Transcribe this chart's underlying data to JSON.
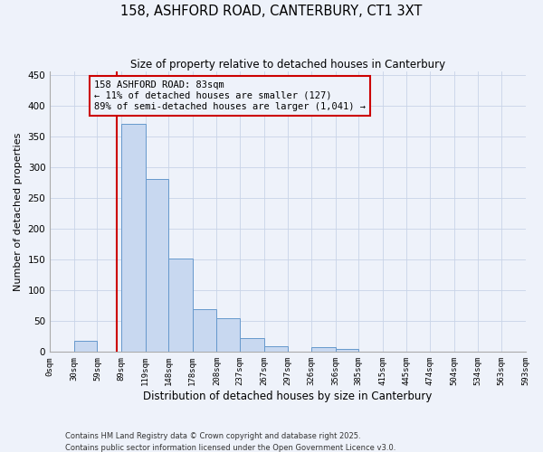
{
  "title": "158, ASHFORD ROAD, CANTERBURY, CT1 3XT",
  "subtitle": "Size of property relative to detached houses in Canterbury",
  "xlabel": "Distribution of detached houses by size in Canterbury",
  "ylabel": "Number of detached properties",
  "bar_color": "#c8d8f0",
  "bar_edge_color": "#6699cc",
  "grid_color": "#c8d4e8",
  "background_color": "#eef2fa",
  "annotation_box_color": "#cc0000",
  "property_line_color": "#cc0000",
  "bin_edges": [
    0,
    30,
    59,
    89,
    119,
    148,
    178,
    208,
    237,
    267,
    297,
    326,
    356,
    385,
    415,
    445,
    474,
    504,
    534,
    563,
    593
  ],
  "bin_labels": [
    "0sqm",
    "30sqm",
    "59sqm",
    "89sqm",
    "119sqm",
    "148sqm",
    "178sqm",
    "208sqm",
    "237sqm",
    "267sqm",
    "297sqm",
    "326sqm",
    "356sqm",
    "385sqm",
    "415sqm",
    "445sqm",
    "474sqm",
    "504sqm",
    "534sqm",
    "563sqm",
    "593sqm"
  ],
  "counts": [
    0,
    18,
    0,
    370,
    280,
    152,
    70,
    55,
    23,
    10,
    0,
    8,
    5,
    0,
    0,
    0,
    0,
    0,
    0,
    0
  ],
  "property_value": 83,
  "ylim": [
    0,
    455
  ],
  "yticks": [
    0,
    50,
    100,
    150,
    200,
    250,
    300,
    350,
    400,
    450
  ],
  "annotation_title": "158 ASHFORD ROAD: 83sqm",
  "annotation_line1": "← 11% of detached houses are smaller (127)",
  "annotation_line2": "89% of semi-detached houses are larger (1,041) →",
  "footer_line1": "Contains HM Land Registry data © Crown copyright and database right 2025.",
  "footer_line2": "Contains public sector information licensed under the Open Government Licence v3.0."
}
